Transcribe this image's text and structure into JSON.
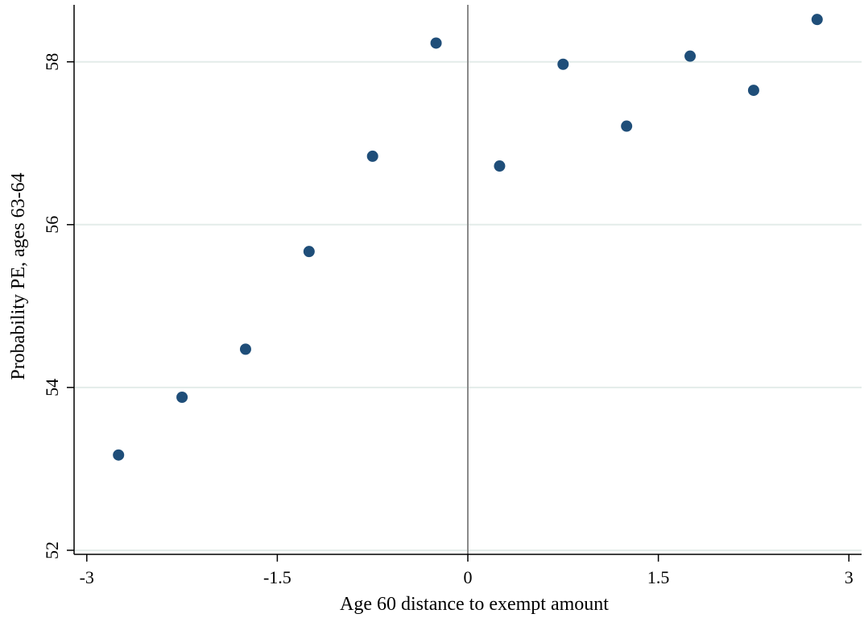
{
  "chart_data": {
    "type": "scatter",
    "title": "",
    "xlabel": "Age 60 distance to exempt amount",
    "ylabel": "Probability PE, ages 63-64",
    "xlim": [
      -3.1,
      3.1
    ],
    "ylim": [
      51.95,
      58.7
    ],
    "x_ticks": [
      -3,
      -1.5,
      0,
      1.5,
      3
    ],
    "x_tick_labels": [
      "-3",
      "-1.5",
      "0",
      "1.5",
      "3"
    ],
    "y_ticks": [
      52,
      54,
      56,
      58
    ],
    "y_tick_labels": [
      "52",
      "54",
      "56",
      "58"
    ],
    "grid": "horizontal",
    "reference_line_x": 0,
    "marker_color": "#1f4e79",
    "x": [
      -2.75,
      -2.25,
      -1.75,
      -1.25,
      -0.75,
      -0.25,
      0.25,
      0.75,
      1.25,
      1.75,
      2.25,
      2.75
    ],
    "y": [
      53.17,
      53.88,
      54.47,
      55.67,
      56.84,
      58.23,
      56.72,
      57.97,
      57.21,
      58.07,
      57.65,
      58.52
    ]
  }
}
